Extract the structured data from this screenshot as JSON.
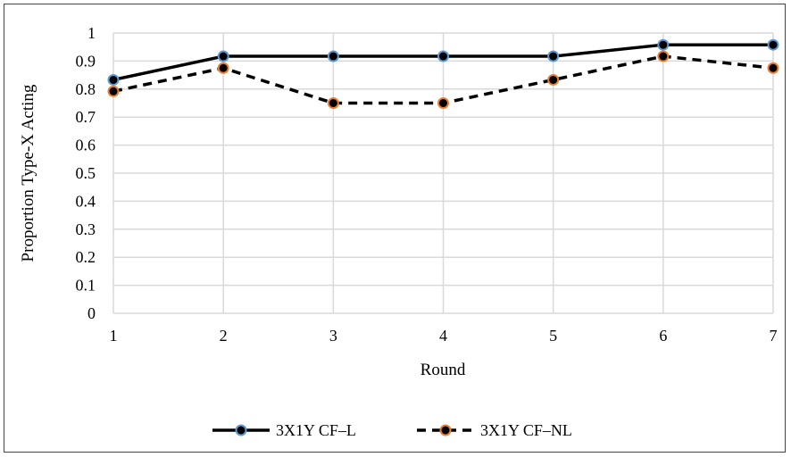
{
  "chart_data": {
    "type": "line",
    "title": "",
    "xlabel": "Round",
    "ylabel": "Proportion Type-X Acting",
    "x": [
      1,
      2,
      3,
      4,
      5,
      6,
      7
    ],
    "ylim": [
      0,
      1
    ],
    "yticks": [
      "0",
      "0.1",
      "0.2",
      "0.3",
      "0.4",
      "0.5",
      "0.6",
      "0.7",
      "0.8",
      "0.9",
      "1"
    ],
    "xticks": [
      "1",
      "2",
      "3",
      "4",
      "5",
      "6",
      "7"
    ],
    "grid": true,
    "legend_position": "bottom",
    "series": [
      {
        "name": "3X1Y CF–L",
        "values": [
          0.833,
          0.917,
          0.917,
          0.917,
          0.917,
          0.958,
          0.958
        ],
        "line_style": "solid",
        "line_color": "#000000",
        "marker_fill": "#000000",
        "marker_edge": "#5b9bd5"
      },
      {
        "name": "3X1Y CF–NL",
        "values": [
          0.792,
          0.875,
          0.75,
          0.75,
          0.833,
          0.917,
          0.875
        ],
        "line_style": "dashed",
        "line_color": "#000000",
        "marker_fill": "#000000",
        "marker_edge": "#ed7d31"
      }
    ],
    "gridline_color": "#d9d9d9"
  }
}
